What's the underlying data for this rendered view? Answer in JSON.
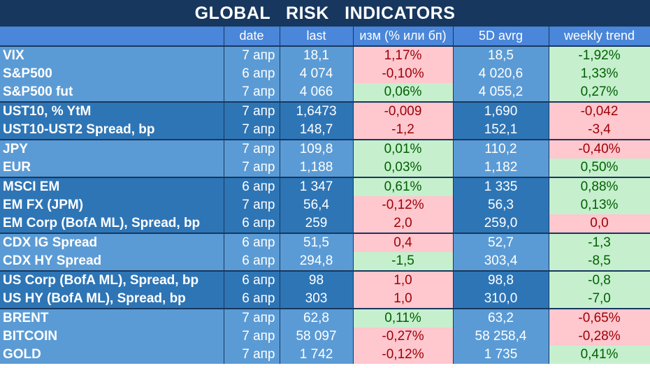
{
  "title": "GLOBAL   RISK   INDICATORS",
  "headers": [
    "",
    "date",
    "last",
    "изм (% или бп)",
    "5D avrg",
    "weekly trend"
  ],
  "rows": [
    {
      "name": "VIX",
      "date": "7 апр",
      "last": "18,1",
      "chg": "1,17%",
      "chg_status": "red",
      "avg": "18,5",
      "trend": "-1,92%",
      "trend_status": "green",
      "group": "light",
      "first": true
    },
    {
      "name": "S&P500",
      "date": "6 апр",
      "last": "4 074",
      "chg": "-0,10%",
      "chg_status": "red",
      "avg": "4 020,6",
      "trend": "1,33%",
      "trend_status": "green",
      "group": "light",
      "first": false
    },
    {
      "name": "S&P500 fut",
      "date": "7 апр",
      "last": "4 066",
      "chg": "0,06%",
      "chg_status": "green",
      "avg": "4 055,2",
      "trend": "0,27%",
      "trend_status": "green",
      "group": "light",
      "first": false
    },
    {
      "name": "UST10, % YtM",
      "date": "7 апр",
      "last": "1,6473",
      "chg": "-0,009",
      "chg_status": "red",
      "avg": "1,690",
      "trend": "-0,042",
      "trend_status": "red",
      "group": "dark",
      "first": true
    },
    {
      "name": "UST10-UST2 Spread, bp",
      "date": "7 апр",
      "last": "148,7",
      "chg": "-1,2",
      "chg_status": "red",
      "avg": "152,1",
      "trend": "-3,4",
      "trend_status": "red",
      "group": "dark",
      "first": false
    },
    {
      "name": "JPY",
      "date": "7 апр",
      "last": "109,8",
      "chg": "0,01%",
      "chg_status": "green",
      "avg": "110,2",
      "trend": "-0,40%",
      "trend_status": "red",
      "group": "light",
      "first": true
    },
    {
      "name": "EUR",
      "date": "7 апр",
      "last": "1,188",
      "chg": "0,03%",
      "chg_status": "green",
      "avg": "1,182",
      "trend": "0,50%",
      "trend_status": "green",
      "group": "light",
      "first": false
    },
    {
      "name": "MSCI EM",
      "date": "6 апр",
      "last": "1 347",
      "chg": "0,61%",
      "chg_status": "green",
      "avg": "1 335",
      "trend": "0,88%",
      "trend_status": "green",
      "group": "dark",
      "first": true
    },
    {
      "name": "EM FX (JPM)",
      "date": "7 апр",
      "last": "56,4",
      "chg": "-0,12%",
      "chg_status": "red",
      "avg": "56,3",
      "trend": "0,13%",
      "trend_status": "green",
      "group": "dark",
      "first": false
    },
    {
      "name": "EM Corp (BofA ML), Spread, bp",
      "date": "6 апр",
      "last": "259",
      "chg": "2,0",
      "chg_status": "red",
      "avg": "259,0",
      "trend": "0,0",
      "trend_status": "red",
      "group": "dark",
      "first": false
    },
    {
      "name": "CDX IG Spread",
      "date": "6 апр",
      "last": "51,5",
      "chg": "0,4",
      "chg_status": "red",
      "avg": "52,7",
      "trend": "-1,3",
      "trend_status": "green",
      "group": "light",
      "first": true
    },
    {
      "name": "CDX HY Spread",
      "date": "6 апр",
      "last": "294,8",
      "chg": "-1,5",
      "chg_status": "green",
      "avg": "303,4",
      "trend": "-8,5",
      "trend_status": "green",
      "group": "light",
      "first": false
    },
    {
      "name": "US Corp (BofA ML), Spread, bp",
      "date": "6 апр",
      "last": "98",
      "chg": "1,0",
      "chg_status": "red",
      "avg": "98,8",
      "trend": "-0,8",
      "trend_status": "green",
      "group": "dark",
      "first": true
    },
    {
      "name": "US HY (BofA ML), Spread, bp",
      "date": "6 апр",
      "last": "303",
      "chg": "1,0",
      "chg_status": "red",
      "avg": "310,0",
      "trend": "-7,0",
      "trend_status": "green",
      "group": "dark",
      "first": false
    },
    {
      "name": "BRENT",
      "date": "7 апр",
      "last": "62,8",
      "chg": "0,11%",
      "chg_status": "green",
      "avg": "63,2",
      "trend": "-0,65%",
      "trend_status": "red",
      "group": "light",
      "first": true
    },
    {
      "name": "BITCOIN",
      "date": "7 апр",
      "last": "58 097",
      "chg": "-0,27%",
      "chg_status": "red",
      "avg": "58 258,4",
      "trend": "-0,28%",
      "trend_status": "red",
      "group": "light",
      "first": false
    },
    {
      "name": "GOLD",
      "date": "7 апр",
      "last": "1 742",
      "chg": "-0,12%",
      "chg_status": "red",
      "avg": "1 735",
      "trend": "0,41%",
      "trend_status": "green",
      "group": "light",
      "first": false
    }
  ],
  "colors": {
    "title_bg": "#17375e",
    "header_bg": "#4a86d9",
    "group_light": "#5b9bd5",
    "group_dark": "#2e75b6",
    "red_bg": "#ffc7ce",
    "red_text": "#9c0006",
    "green_bg": "#c6efce",
    "green_text": "#006100"
  }
}
